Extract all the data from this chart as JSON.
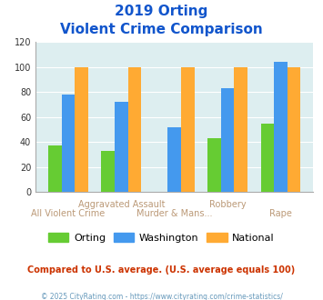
{
  "title_line1": "2019 Orting",
  "title_line2": "Violent Crime Comparison",
  "categories": [
    "All Violent Crime",
    "Aggravated Assault",
    "Murder & Mans...",
    "Robbery",
    "Rape"
  ],
  "labels_row1": [
    "",
    "Aggravated Assault",
    "",
    "Robbery",
    ""
  ],
  "labels_row2": [
    "All Violent Crime",
    "",
    "Murder & Mans...",
    "",
    "Rape"
  ],
  "orting_values": [
    37,
    33,
    0,
    43,
    55
  ],
  "washington_values": [
    78,
    72,
    52,
    83,
    104
  ],
  "national_values": [
    100,
    100,
    100,
    100,
    100
  ],
  "orting_color": "#66cc33",
  "washington_color": "#4499ee",
  "national_color": "#ffaa33",
  "bg_color": "#ddeef0",
  "title_color": "#1155cc",
  "ylim": [
    0,
    120
  ],
  "yticks": [
    0,
    20,
    40,
    60,
    80,
    100,
    120
  ],
  "xlabel_color": "#bb9977",
  "note_text": "Compared to U.S. average. (U.S. average equals 100)",
  "note_color": "#cc3300",
  "footer_text": "© 2025 CityRating.com - https://www.cityrating.com/crime-statistics/",
  "footer_color": "#6699bb",
  "legend_labels": [
    "Orting",
    "Washington",
    "National"
  ],
  "ytick_fontsize": 7,
  "xtick_fontsize": 7,
  "bar_width": 0.25,
  "title_fontsize1": 11,
  "title_fontsize2": 11,
  "note_fontsize": 7,
  "footer_fontsize": 5.5
}
